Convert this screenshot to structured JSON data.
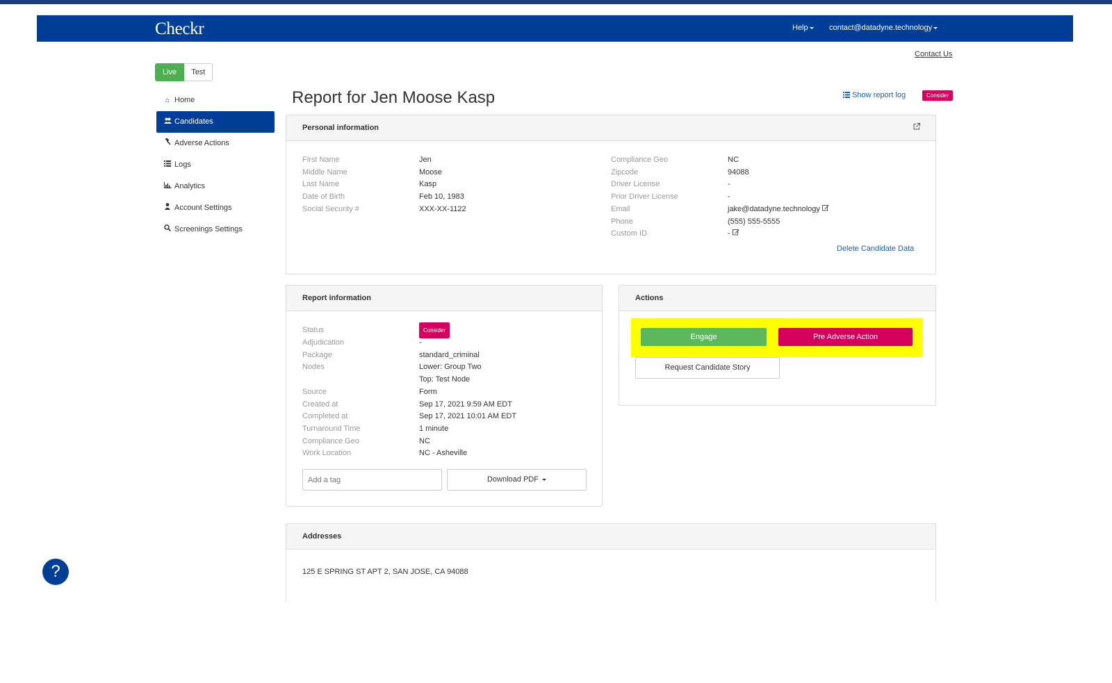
{
  "header": {
    "brand": "Checkr",
    "help_label": "Help",
    "account_label": "contact@datadyne.technology"
  },
  "contact_us": "Contact Us",
  "env_toggle": {
    "live": "Live",
    "test": "Test"
  },
  "sidebar": {
    "items": [
      {
        "label": "Home",
        "icon": "home-icon"
      },
      {
        "label": "Candidates",
        "icon": "users-icon",
        "active": true
      },
      {
        "label": "Adverse Actions",
        "icon": "gavel-icon"
      },
      {
        "label": "Logs",
        "icon": "list-icon"
      },
      {
        "label": "Analytics",
        "icon": "bar-chart-icon"
      },
      {
        "label": "Account Settings",
        "icon": "user-icon"
      },
      {
        "label": "Screenings Settings",
        "icon": "search-icon"
      }
    ]
  },
  "page": {
    "title": "Report for Jen Moose Kasp",
    "report_log_label": "Show report log",
    "status_badge": "Consider"
  },
  "personal": {
    "heading": "Personal information",
    "left": [
      {
        "k": "First Name",
        "v": "Jen"
      },
      {
        "k": "Middle Name",
        "v": "Moose"
      },
      {
        "k": "Last Name",
        "v": "Kasp"
      },
      {
        "k": "Date of Birth",
        "v": "Feb 10, 1983"
      },
      {
        "k": "Social Security #",
        "v": "XXX-XX-1122"
      }
    ],
    "right": [
      {
        "k": "Compliance Geo",
        "v": "NC"
      },
      {
        "k": "Zipcode",
        "v": "94088"
      },
      {
        "k": "Driver License",
        "v": "-"
      },
      {
        "k": "Prior Driver License",
        "v": "-"
      },
      {
        "k": "Email",
        "v": "jake@datadyne.technology"
      },
      {
        "k": "Phone",
        "v": "(555) 555-5555"
      },
      {
        "k": "Custom ID",
        "v": "-"
      }
    ],
    "delete_label": "Delete Candidate Data"
  },
  "report": {
    "heading": "Report information",
    "status_label": "Status",
    "status_badge": "Consider",
    "rows": [
      {
        "k": "Adjudication",
        "v": "-"
      },
      {
        "k": "Package",
        "v": "standard_criminal"
      },
      {
        "k": "Nodes",
        "v": "Lower: Group Two"
      },
      {
        "k": "",
        "v": "Top: Test Node"
      },
      {
        "k": "Source",
        "v": "Form"
      },
      {
        "k": "Created at",
        "v": "Sep 17, 2021 9:59 AM EDT"
      },
      {
        "k": "Completed at",
        "v": "Sep 17, 2021 10:01 AM EDT"
      },
      {
        "k": "Turnaround Time",
        "v": "1 minute"
      },
      {
        "k": "Compliance Geo",
        "v": "NC"
      },
      {
        "k": "Work Location",
        "v": "NC - Asheville"
      }
    ],
    "tag_placeholder": "Add a tag",
    "download_label": "Download PDF"
  },
  "actions": {
    "heading": "Actions",
    "engage_label": "Engage",
    "pre_adverse_label": "Pre Adverse Action",
    "request_story_label": "Request Candidate Story"
  },
  "addresses": {
    "heading": "Addresses",
    "line": "125 E SPRING ST APT 2, SAN JOSE, CA 94088"
  },
  "colors": {
    "navbar": "#003e97",
    "live": "#4caf50",
    "engage": "#5cb85c",
    "consider": "#d6005e",
    "highlight": "#ffff00",
    "link": "#1a5fb4"
  }
}
